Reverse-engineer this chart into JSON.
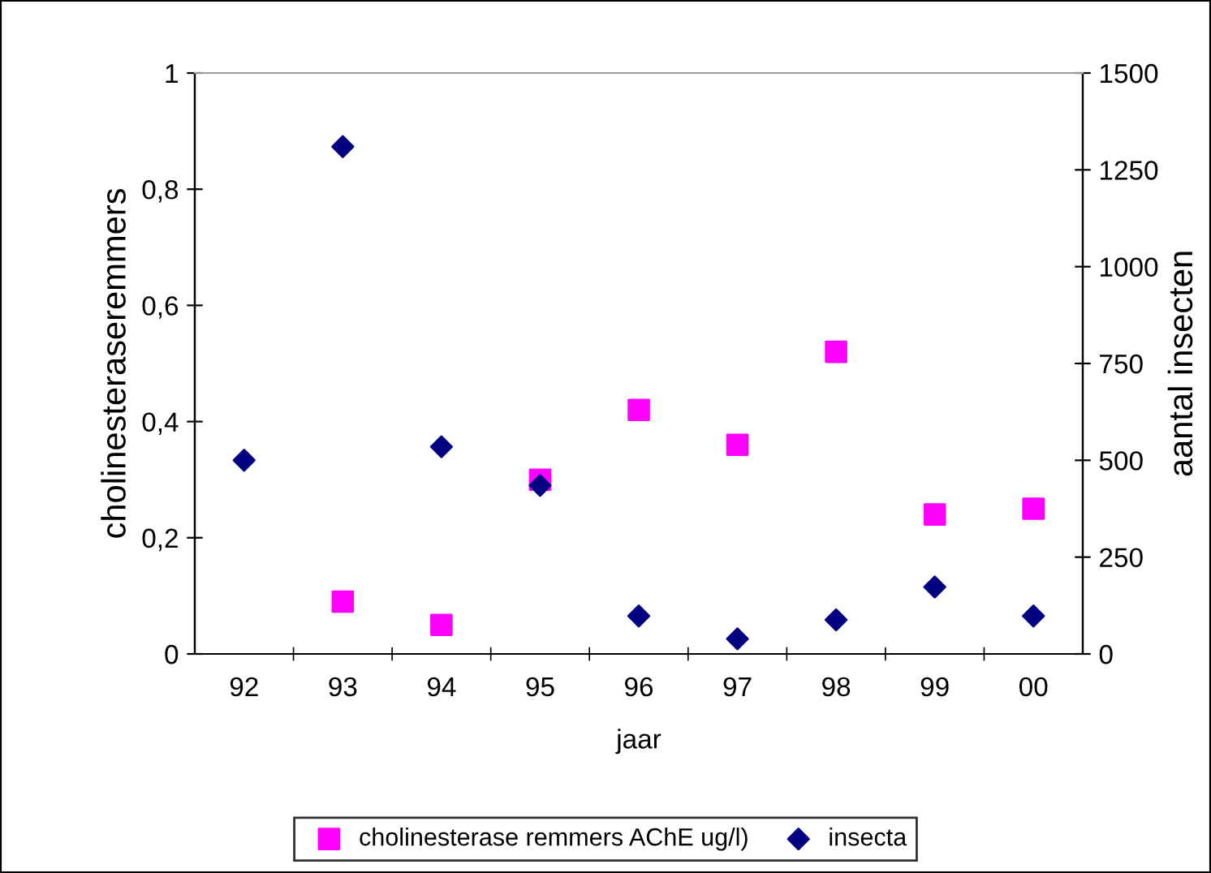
{
  "chart_data": {
    "type": "scatter",
    "xlabel": "jaar",
    "ylabel": "cholinesteraseremmers",
    "y2label": "aantal insecten",
    "categories": [
      "92",
      "93",
      "94",
      "95",
      "96",
      "97",
      "98",
      "99",
      "00"
    ],
    "series": [
      {
        "name": "cholinesterase remmers AChE ug/l)",
        "color": "#ff00ff",
        "marker": "square",
        "values": [
          null,
          0.09,
          0.05,
          0.3,
          0.42,
          0.36,
          0.52,
          0.24,
          0.25
        ]
      },
      {
        "name": "insecta",
        "color": "#000080",
        "marker": "diamond",
        "axis": "y2",
        "values": [
          500,
          1310,
          535,
          435,
          98,
          39,
          88,
          173,
          98
        ]
      }
    ],
    "ylim": [
      0,
      1
    ],
    "yticks": [
      {
        "value": 0,
        "label": "0"
      },
      {
        "value": 0.2,
        "label": "0,2"
      },
      {
        "value": 0.4,
        "label": "0,4"
      },
      {
        "value": 0.6,
        "label": "0,6"
      },
      {
        "value": 0.8,
        "label": "0,8"
      },
      {
        "value": 1,
        "label": "1"
      }
    ],
    "y2lim": [
      0,
      1500
    ],
    "y2ticks": [
      0,
      250,
      500,
      750,
      1000,
      1250,
      1500
    ],
    "grid": false,
    "legend": "bottom"
  }
}
